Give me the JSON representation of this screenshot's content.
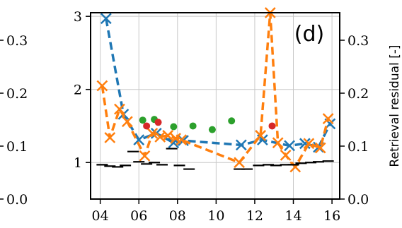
{
  "chart_data": {
    "type": "line",
    "panel_label": "(d)",
    "x_ticks": [
      "04",
      "06",
      "08",
      "10",
      "12",
      "14",
      "16"
    ],
    "x_tick_values": [
      4,
      6,
      8,
      10,
      12,
      14,
      16
    ],
    "xlim": [
      3.5,
      16.4
    ],
    "left_axis": {
      "ylim": [
        0.5,
        3.05
      ],
      "ticks": [
        "1",
        "2",
        "3"
      ],
      "tick_values": [
        1,
        2,
        3
      ]
    },
    "right_axis": {
      "label": "Retrieval residual [-]",
      "ylim": [
        0.0,
        0.352
      ],
      "ticks": [
        "0.0",
        "0.1",
        "0.2",
        "0.3"
      ],
      "tick_values": [
        0.0,
        0.1,
        0.2,
        0.3
      ]
    },
    "partial_left_panel_ticks": [
      "0.3",
      "0.2",
      "0.1",
      "0.0"
    ],
    "grid": true,
    "series": [
      {
        "color": "#1f77b4",
        "style": "dashed-x",
        "x": [
          4.3,
          5.2,
          6.0,
          6.9,
          7.8,
          8.3,
          11.3,
          12.4,
          13.8,
          14.6,
          15.3,
          15.9
        ],
        "y": [
          2.97,
          1.66,
          1.31,
          1.4,
          1.27,
          1.3,
          1.24,
          1.31,
          1.23,
          1.26,
          1.21,
          1.53
        ]
      },
      {
        "color": "#ff7f0e",
        "style": "dashed-x",
        "x": [
          4.1,
          4.5,
          5.0,
          5.4,
          6.3,
          6.7,
          7.1,
          7.5,
          7.9,
          8.2,
          11.2,
          12.3,
          12.8,
          13.2,
          13.6,
          14.1,
          14.8,
          15.4,
          15.8
        ],
        "y": [
          2.05,
          1.34,
          1.73,
          1.56,
          1.09,
          1.4,
          1.35,
          1.37,
          1.33,
          1.31,
          1.0,
          1.37,
          3.05,
          1.27,
          1.1,
          0.94,
          1.26,
          1.2,
          1.6
        ]
      },
      {
        "color": "#2ca02c",
        "style": "points",
        "x": [
          6.2,
          6.8,
          7.8,
          8.8,
          9.8,
          10.8
        ],
        "y": [
          1.58,
          1.59,
          1.49,
          1.5,
          1.45,
          1.57
        ]
      },
      {
        "color": "#d62728",
        "style": "points",
        "x": [
          6.4,
          7.0,
          12.9
        ],
        "y": [
          1.5,
          1.55,
          1.5
        ]
      },
      {
        "color": "#000000",
        "style": "dashes",
        "x": [
          4.1,
          4.5,
          4.9,
          5.3,
          5.7,
          6.0,
          6.4,
          6.8,
          7.2,
          7.7,
          8.1,
          8.6,
          11.2,
          11.6,
          12.2,
          12.7,
          13.1,
          13.6,
          14.0,
          14.4,
          14.9,
          15.3,
          15.8
        ],
        "y": [
          0.97,
          0.95,
          0.94,
          0.96,
          1.15,
          1.01,
          0.98,
          1.0,
          0.97,
          1.19,
          0.96,
          0.91,
          0.91,
          0.91,
          0.96,
          0.97,
          0.96,
          0.97,
          0.97,
          0.99,
          1.0,
          1.01,
          1.02
        ]
      }
    ]
  }
}
